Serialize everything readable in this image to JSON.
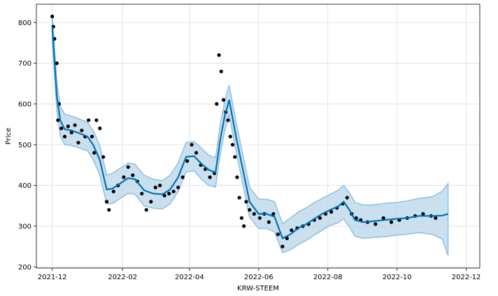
{
  "chart_data": {
    "type": "line",
    "title": "",
    "xlabel": "KRW-STEEM",
    "ylabel": "Price",
    "grid": true,
    "x_ticks": [
      "2021-12",
      "2022-02",
      "2022-04",
      "2022-06",
      "2022-08",
      "2022-10",
      "2022-12"
    ],
    "y_ticks": [
      200,
      300,
      400,
      500,
      600,
      700,
      800
    ],
    "xlim": [
      "2021-11-17",
      "2022-12-13"
    ],
    "ylim": [
      197,
      845
    ],
    "colors": {
      "forecast": "#0072B2",
      "band": "#b9d6ea",
      "band_edge": "#8fc0e0",
      "observed": "#000000"
    },
    "series": [
      {
        "role": "forecast",
        "x": [
          "2021-12-01",
          "2021-12-05",
          "2021-12-08",
          "2021-12-12",
          "2021-12-18",
          "2021-12-25",
          "2022-01-01",
          "2022-01-06",
          "2022-01-12",
          "2022-01-18",
          "2022-01-23",
          "2022-01-30",
          "2022-02-06",
          "2022-02-12",
          "2022-02-20",
          "2022-02-28",
          "2022-03-08",
          "2022-03-15",
          "2022-03-22",
          "2022-03-29",
          "2022-04-05",
          "2022-04-12",
          "2022-04-18",
          "2022-04-24",
          "2022-04-28",
          "2022-05-02",
          "2022-05-06",
          "2022-05-12",
          "2022-05-18",
          "2022-05-24",
          "2022-06-01",
          "2022-06-08",
          "2022-06-15",
          "2022-06-22",
          "2022-06-29",
          "2022-07-06",
          "2022-07-13",
          "2022-07-20",
          "2022-07-27",
          "2022-08-03",
          "2022-08-10",
          "2022-08-15",
          "2022-08-20",
          "2022-08-25",
          "2022-09-01",
          "2022-09-10",
          "2022-09-20",
          "2022-10-01",
          "2022-10-10",
          "2022-10-20",
          "2022-11-01",
          "2022-11-10",
          "2022-11-15"
        ],
        "y": [
          790,
          620,
          560,
          538,
          535,
          528,
          520,
          500,
          462,
          390,
          392,
          405,
          418,
          415,
          388,
          380,
          378,
          390,
          420,
          470,
          472,
          452,
          438,
          432,
          510,
          570,
          610,
          520,
          440,
          360,
          330,
          330,
          323,
          270,
          280,
          295,
          305,
          318,
          330,
          340,
          348,
          360,
          340,
          315,
          310,
          312,
          315,
          318,
          320,
          325,
          325,
          326,
          330
        ]
      },
      {
        "role": "uncertainty-upper",
        "x": [
          "2021-12-01",
          "2021-12-05",
          "2021-12-08",
          "2021-12-12",
          "2021-12-18",
          "2021-12-25",
          "2022-01-01",
          "2022-01-06",
          "2022-01-12",
          "2022-01-18",
          "2022-01-23",
          "2022-01-30",
          "2022-02-06",
          "2022-02-12",
          "2022-02-20",
          "2022-02-28",
          "2022-03-08",
          "2022-03-15",
          "2022-03-22",
          "2022-03-29",
          "2022-04-05",
          "2022-04-12",
          "2022-04-18",
          "2022-04-24",
          "2022-04-28",
          "2022-05-02",
          "2022-05-06",
          "2022-05-12",
          "2022-05-18",
          "2022-05-24",
          "2022-06-01",
          "2022-06-08",
          "2022-06-15",
          "2022-06-22",
          "2022-06-29",
          "2022-07-06",
          "2022-07-13",
          "2022-07-20",
          "2022-07-27",
          "2022-08-03",
          "2022-08-10",
          "2022-08-15",
          "2022-08-20",
          "2022-08-25",
          "2022-09-01",
          "2022-09-10",
          "2022-09-20",
          "2022-10-01",
          "2022-10-10",
          "2022-10-20",
          "2022-11-01",
          "2022-11-10",
          "2022-11-15"
        ],
        "y": [
          820,
          655,
          595,
          575,
          570,
          563,
          555,
          535,
          497,
          425,
          430,
          442,
          455,
          452,
          425,
          415,
          412,
          425,
          455,
          505,
          508,
          490,
          474,
          468,
          546,
          606,
          646,
          556,
          476,
          396,
          366,
          366,
          360,
          306,
          320,
          335,
          345,
          358,
          368,
          378,
          388,
          400,
          382,
          358,
          352,
          352,
          356,
          358,
          362,
          368,
          372,
          386,
          405
        ]
      },
      {
        "role": "uncertainty-lower",
        "x": [
          "2021-12-01",
          "2021-12-05",
          "2021-12-08",
          "2021-12-12",
          "2021-12-18",
          "2021-12-25",
          "2022-01-01",
          "2022-01-06",
          "2022-01-12",
          "2022-01-18",
          "2022-01-23",
          "2022-01-30",
          "2022-02-06",
          "2022-02-12",
          "2022-02-20",
          "2022-02-28",
          "2022-03-08",
          "2022-03-15",
          "2022-03-22",
          "2022-03-29",
          "2022-04-05",
          "2022-04-12",
          "2022-04-18",
          "2022-04-24",
          "2022-04-28",
          "2022-05-02",
          "2022-05-06",
          "2022-05-12",
          "2022-05-18",
          "2022-05-24",
          "2022-06-01",
          "2022-06-08",
          "2022-06-15",
          "2022-06-22",
          "2022-06-29",
          "2022-07-06",
          "2022-07-13",
          "2022-07-20",
          "2022-07-27",
          "2022-08-03",
          "2022-08-10",
          "2022-08-15",
          "2022-08-20",
          "2022-08-25",
          "2022-09-01",
          "2022-09-10",
          "2022-09-20",
          "2022-10-01",
          "2022-10-10",
          "2022-10-20",
          "2022-11-01",
          "2022-11-10",
          "2022-11-15"
        ],
        "y": [
          758,
          585,
          522,
          500,
          498,
          492,
          485,
          464,
          425,
          355,
          355,
          368,
          381,
          378,
          350,
          344,
          342,
          355,
          385,
          433,
          436,
          414,
          400,
          396,
          474,
          534,
          574,
          484,
          404,
          322,
          294,
          294,
          286,
          235,
          242,
          255,
          265,
          278,
          290,
          302,
          308,
          318,
          298,
          275,
          270,
          272,
          274,
          278,
          280,
          284,
          280,
          268,
          228
        ]
      },
      {
        "role": "observed",
        "x": [
          "2021-12-01",
          "2021-12-02",
          "2021-12-03",
          "2021-12-05",
          "2021-12-06",
          "2021-12-07",
          "2021-12-09",
          "2021-12-12",
          "2021-12-15",
          "2021-12-18",
          "2021-12-21",
          "2021-12-24",
          "2021-12-27",
          "2021-12-30",
          "2022-01-02",
          "2022-01-05",
          "2022-01-07",
          "2022-01-09",
          "2022-01-12",
          "2022-01-15",
          "2022-01-18",
          "2022-01-20",
          "2022-01-24",
          "2022-01-28",
          "2022-02-02",
          "2022-02-06",
          "2022-02-10",
          "2022-02-14",
          "2022-02-18",
          "2022-02-22",
          "2022-02-26",
          "2022-03-02",
          "2022-03-06",
          "2022-03-10",
          "2022-03-14",
          "2022-03-18",
          "2022-03-22",
          "2022-03-26",
          "2022-03-30",
          "2022-04-03",
          "2022-04-07",
          "2022-04-11",
          "2022-04-15",
          "2022-04-19",
          "2022-04-23",
          "2022-04-25",
          "2022-04-27",
          "2022-04-29",
          "2022-05-01",
          "2022-05-03",
          "2022-05-05",
          "2022-05-07",
          "2022-05-09",
          "2022-05-11",
          "2022-05-13",
          "2022-05-15",
          "2022-05-17",
          "2022-05-19",
          "2022-05-21",
          "2022-05-24",
          "2022-05-28",
          "2022-06-02",
          "2022-06-06",
          "2022-06-10",
          "2022-06-14",
          "2022-06-18",
          "2022-06-22",
          "2022-06-26",
          "2022-06-30",
          "2022-07-05",
          "2022-07-10",
          "2022-07-15",
          "2022-07-20",
          "2022-07-25",
          "2022-07-30",
          "2022-08-04",
          "2022-08-09",
          "2022-08-14",
          "2022-08-18",
          "2022-08-22",
          "2022-08-26",
          "2022-08-30",
          "2022-09-05",
          "2022-09-12",
          "2022-09-19",
          "2022-09-26",
          "2022-10-03",
          "2022-10-10",
          "2022-10-17",
          "2022-10-24",
          "2022-10-31",
          "2022-11-04"
        ],
        "y": [
          815,
          790,
          760,
          700,
          560,
          600,
          540,
          520,
          545,
          530,
          548,
          505,
          535,
          520,
          560,
          520,
          480,
          560,
          540,
          470,
          360,
          340,
          385,
          400,
          420,
          445,
          425,
          410,
          380,
          340,
          360,
          395,
          400,
          375,
          380,
          385,
          395,
          420,
          460,
          500,
          480,
          450,
          440,
          420,
          430,
          600,
          720,
          680,
          610,
          580,
          560,
          520,
          500,
          470,
          420,
          370,
          320,
          300,
          360,
          340,
          330,
          320,
          330,
          310,
          330,
          280,
          250,
          270,
          290,
          295,
          300,
          305,
          315,
          320,
          330,
          335,
          345,
          355,
          370,
          330,
          320,
          315,
          310,
          305,
          320,
          310,
          315,
          320,
          325,
          330,
          325,
          320
        ]
      }
    ]
  }
}
